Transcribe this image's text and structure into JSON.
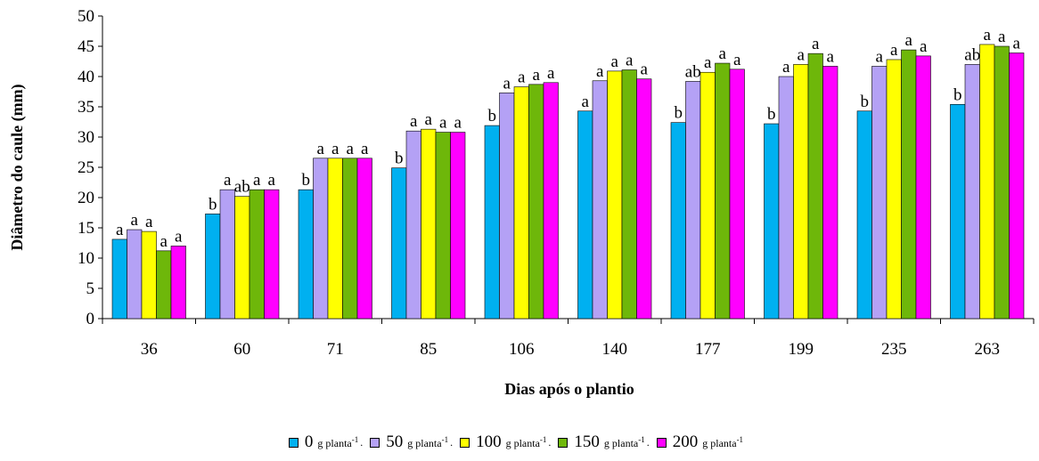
{
  "chart_data": {
    "type": "bar",
    "ylabel": "Diâmetro do caule (mm)",
    "xlabel": "Dias após o plantio",
    "ylim": [
      0,
      50
    ],
    "ytick_step": 5,
    "grid": false,
    "legend_position": "bottom",
    "categories": [
      "36",
      "60",
      "71",
      "85",
      "106",
      "140",
      "177",
      "199",
      "235",
      "263"
    ],
    "series": [
      {
        "name": "0 g planta-1",
        "dose": "0",
        "color": "#00b0f0",
        "values": [
          13.1,
          17.3,
          21.3,
          24.9,
          31.9,
          34.3,
          32.4,
          32.2,
          34.3,
          35.4
        ],
        "letters": [
          "a",
          "b",
          "b",
          "b",
          "b",
          "a",
          "b",
          "b",
          "b",
          "b"
        ]
      },
      {
        "name": "50 g planta-1",
        "dose": "50",
        "color": "#b4a1f5",
        "values": [
          14.7,
          21.3,
          26.5,
          31.0,
          37.3,
          39.3,
          39.2,
          40.0,
          41.7,
          42.0
        ],
        "letters": [
          "a",
          "a",
          "a",
          "a",
          "a",
          "a",
          "ab",
          "a",
          "a",
          "ab"
        ]
      },
      {
        "name": "100 g planta-1",
        "dose": "100",
        "color": "#ffff00",
        "values": [
          14.4,
          20.2,
          26.5,
          31.3,
          38.3,
          40.9,
          40.7,
          42.0,
          42.8,
          45.3
        ],
        "letters": [
          "a",
          "ab",
          "a",
          "a",
          "a",
          "a",
          "a",
          "a",
          "a",
          "a"
        ]
      },
      {
        "name": "150 g planta-1",
        "dose": "150",
        "color": "#6eb70a",
        "values": [
          11.2,
          21.3,
          26.5,
          30.8,
          38.7,
          41.1,
          42.2,
          43.8,
          44.4,
          45.0
        ],
        "letters": [
          "a",
          "a",
          "a",
          "a",
          "a",
          "a",
          "a",
          "a",
          "a",
          "a"
        ]
      },
      {
        "name": "200 g planta-1",
        "dose": "200",
        "color": "#ff00ff",
        "values": [
          12.0,
          21.3,
          26.5,
          30.8,
          39.0,
          39.6,
          41.2,
          41.7,
          43.4,
          43.9
        ],
        "letters": [
          "a",
          "a",
          "a",
          "a",
          "a",
          "a",
          "a",
          "a",
          "a",
          "a"
        ]
      }
    ]
  },
  "legend": {
    "unit_text": "g planta",
    "unit_exponent": "-1",
    "separator": "."
  }
}
